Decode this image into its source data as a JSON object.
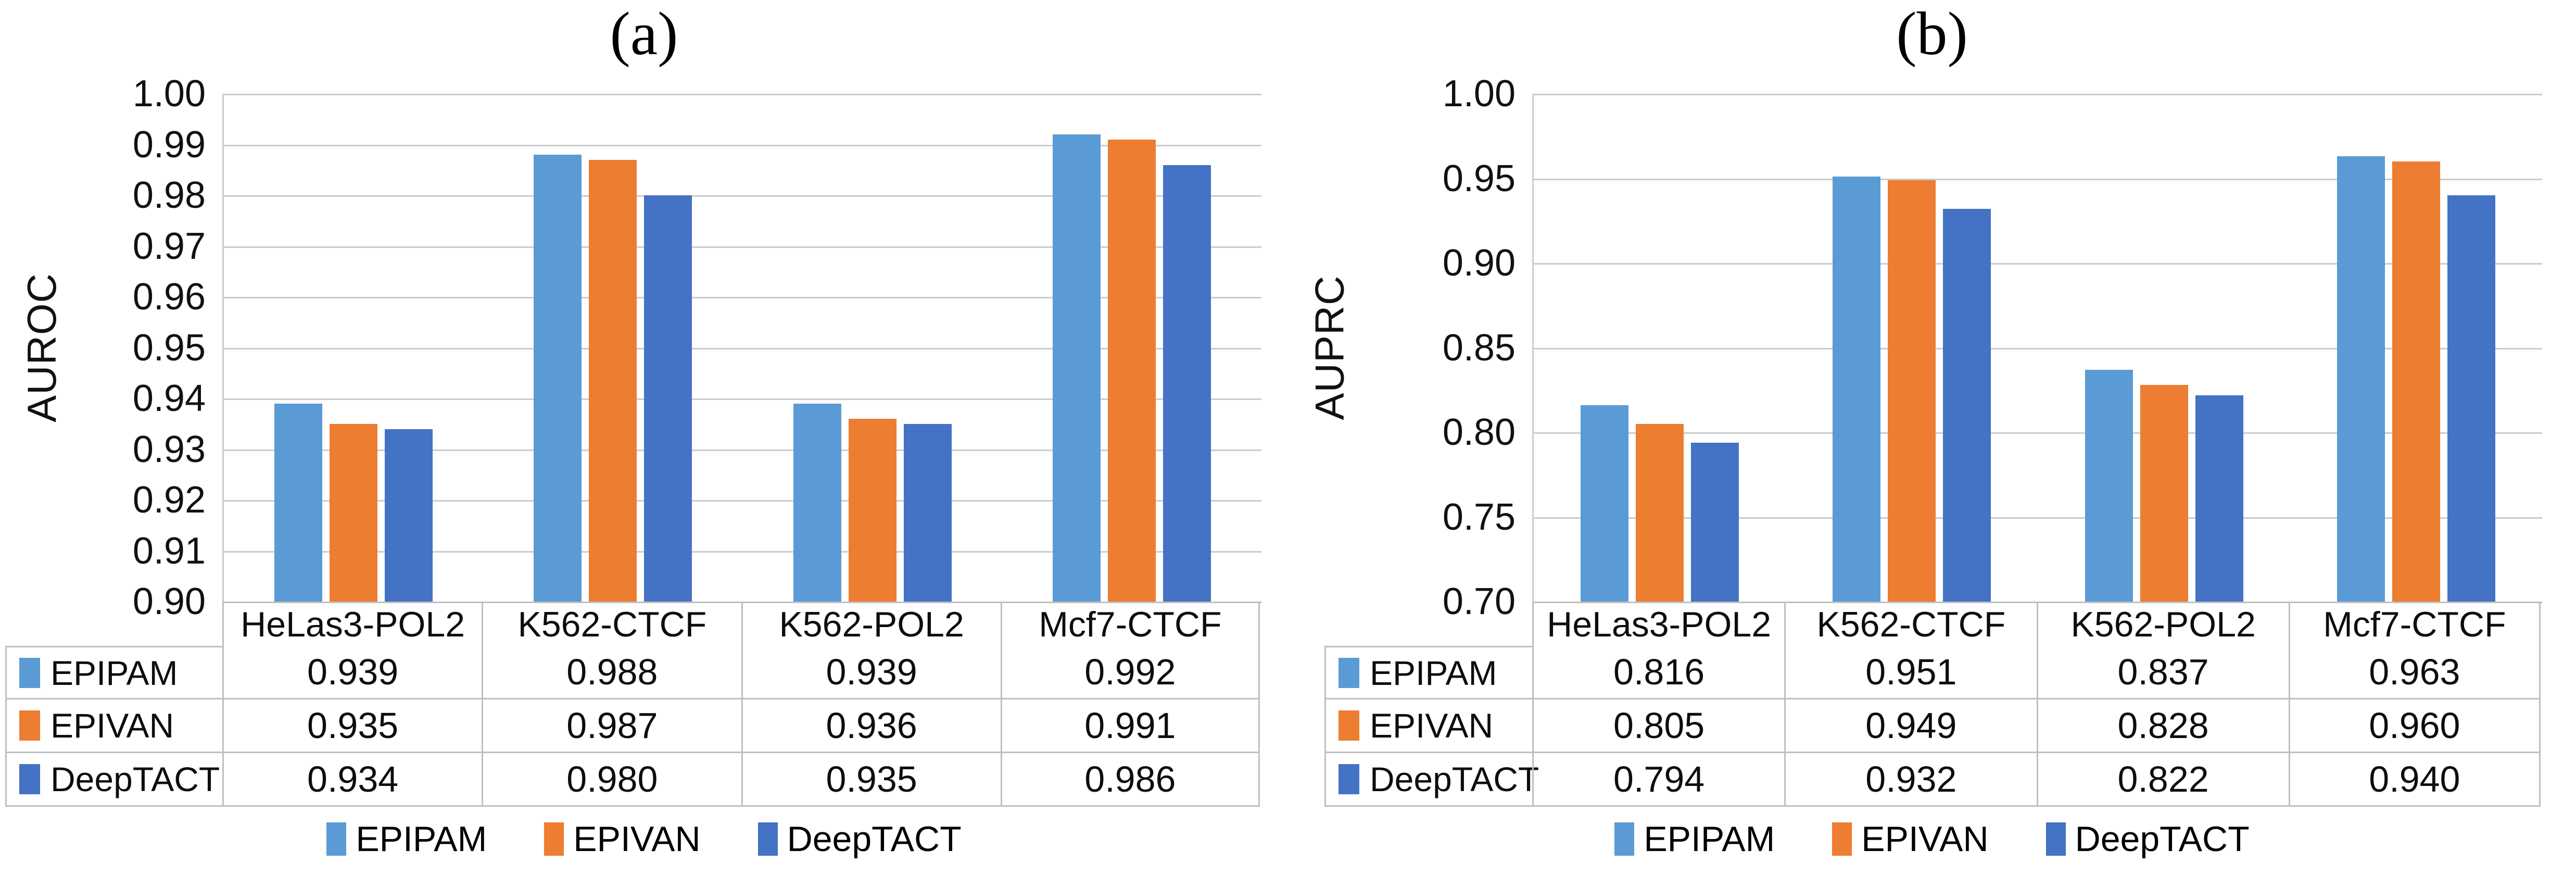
{
  "chart_data": [
    {
      "type": "bar",
      "title": "(a)",
      "ylabel": "AUROC",
      "categories": [
        "HeLas3-POL2",
        "K562-CTCF",
        "K562-POL2",
        "Mcf7-CTCF"
      ],
      "series": [
        {
          "name": "EPIPAM",
          "color": "#5B9BD5",
          "values": [
            0.939,
            0.988,
            0.939,
            0.992
          ]
        },
        {
          "name": "EPIVAN",
          "color": "#ED7D31",
          "values": [
            0.935,
            0.987,
            0.936,
            0.991
          ]
        },
        {
          "name": "DeepTACT",
          "color": "#4472C4",
          "values": [
            0.934,
            0.98,
            0.935,
            0.986
          ]
        }
      ],
      "ylim": [
        0.9,
        1.0
      ],
      "ytick_step": 0.01,
      "ytick_decimals": 2,
      "value_decimals": 3,
      "grid": "horizontal",
      "legend_position": "bottom",
      "data_table_shown": true
    },
    {
      "type": "bar",
      "title": "(b)",
      "ylabel": "AUPRC",
      "categories": [
        "HeLas3-POL2",
        "K562-CTCF",
        "K562-POL2",
        "Mcf7-CTCF"
      ],
      "series": [
        {
          "name": "EPIPAM",
          "color": "#5B9BD5",
          "values": [
            0.816,
            0.951,
            0.837,
            0.963
          ]
        },
        {
          "name": "EPIVAN",
          "color": "#ED7D31",
          "values": [
            0.805,
            0.949,
            0.828,
            0.96
          ]
        },
        {
          "name": "DeepTACT",
          "color": "#4472C4",
          "values": [
            0.794,
            0.932,
            0.822,
            0.94
          ]
        }
      ],
      "ylim": [
        0.7,
        1.0
      ],
      "ytick_step": 0.05,
      "ytick_decimals": 2,
      "value_decimals": 3,
      "grid": "horizontal",
      "legend_position": "bottom",
      "data_table_shown": true
    }
  ]
}
